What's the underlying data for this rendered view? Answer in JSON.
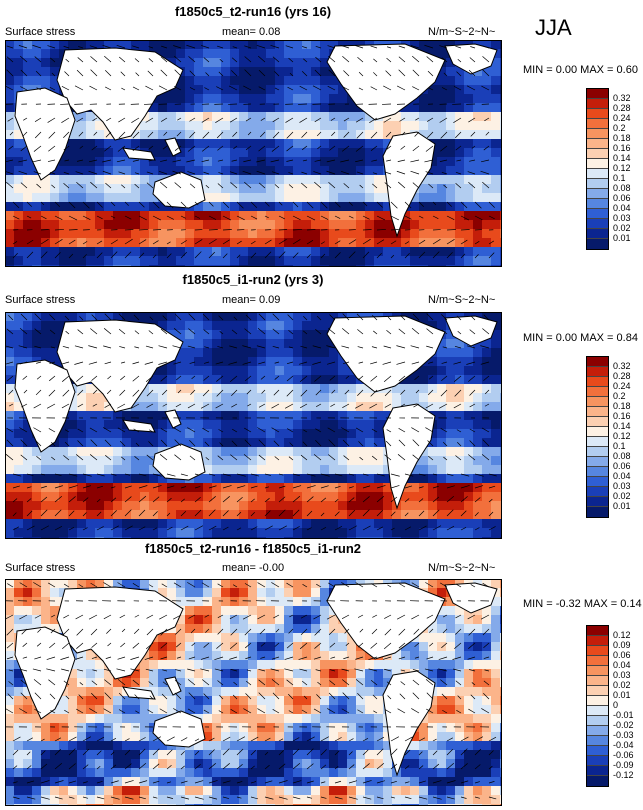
{
  "season": "JJA",
  "panels": [
    {
      "title": "f1850c5_t2-run16 (yrs 16)",
      "variable": "Surface stress",
      "mean": "mean=  0.08",
      "units": "N/m~S~2~N~",
      "minmax": "MIN =   0.00 MAX =   0.60",
      "colormap": "abs"
    },
    {
      "title": "f1850c5_i1-run2 (yrs 3)",
      "variable": "Surface stress",
      "mean": "mean=  0.09",
      "units": "N/m~S~2~N~",
      "minmax": "MIN =   0.00 MAX =   0.84",
      "colormap": "abs"
    },
    {
      "title": "f1850c5_t2-run16 - f1850c5_i1-run2",
      "variable": "Surface stress",
      "mean": "mean=  -0.00",
      "units": "N/m~S~2~N~",
      "minmax": "MIN =  -0.32 MAX =   0.14",
      "colormap": "diff"
    }
  ],
  "colorbars": {
    "abs": {
      "levels": [
        "0.32",
        "0.28",
        "0.24",
        "0.2",
        "0.18",
        "0.16",
        "0.14",
        "0.12",
        "0.1",
        "0.08",
        "0.06",
        "0.04",
        "0.03",
        "0.02",
        "0.01"
      ],
      "colors": [
        "#8b0000",
        "#c41e0a",
        "#e84a1c",
        "#f2703c",
        "#f79460",
        "#fbb48a",
        "#fcd0b2",
        "#fdf1e4",
        "#dce9f7",
        "#b2cdf0",
        "#84aaea",
        "#5686e0",
        "#2f5fd4",
        "#1a3fb8",
        "#0b2590",
        "#061a6a"
      ]
    },
    "diff": {
      "levels": [
        "0.12",
        "0.09",
        "0.06",
        "0.04",
        "0.03",
        "0.02",
        "0.01",
        "0",
        "-0.01",
        "-0.02",
        "-0.03",
        "-0.04",
        "-0.06",
        "-0.09",
        "-0.12"
      ],
      "colors": [
        "#8b0000",
        "#c41e0a",
        "#e84a1c",
        "#f2703c",
        "#f79460",
        "#fbb48a",
        "#fcd0b2",
        "#fdf1e4",
        "#dce9f7",
        "#b2cdf0",
        "#84aaea",
        "#5686e0",
        "#2f5fd4",
        "#1a3fb8",
        "#0b2590",
        "#061a6a"
      ]
    }
  },
  "chart_data": [
    {
      "type": "heatmap",
      "title": "f1850c5_t2-run16 (yrs 16)",
      "variable": "Surface stress",
      "units": "N/m~S~2~N~",
      "mean": 0.08,
      "min": 0.0,
      "max": 0.6,
      "levels": [
        0.01,
        0.02,
        0.03,
        0.04,
        0.06,
        0.08,
        0.1,
        0.12,
        0.14,
        0.16,
        0.18,
        0.2,
        0.24,
        0.28,
        0.32
      ]
    },
    {
      "type": "heatmap",
      "title": "f1850c5_i1-run2 (yrs 3)",
      "variable": "Surface stress",
      "units": "N/m~S~2~N~",
      "mean": 0.09,
      "min": 0.0,
      "max": 0.84,
      "levels": [
        0.01,
        0.02,
        0.03,
        0.04,
        0.06,
        0.08,
        0.1,
        0.12,
        0.14,
        0.16,
        0.18,
        0.2,
        0.24,
        0.28,
        0.32
      ]
    },
    {
      "type": "heatmap",
      "title": "f1850c5_t2-run16 - f1850c5_i1-run2",
      "variable": "Surface stress",
      "units": "N/m~S~2~N~",
      "mean": -0.0,
      "min": -0.32,
      "max": 0.14,
      "levels": [
        -0.12,
        -0.09,
        -0.06,
        -0.04,
        -0.03,
        -0.02,
        -0.01,
        0,
        0.01,
        0.02,
        0.03,
        0.04,
        0.06,
        0.09,
        0.12
      ]
    }
  ]
}
